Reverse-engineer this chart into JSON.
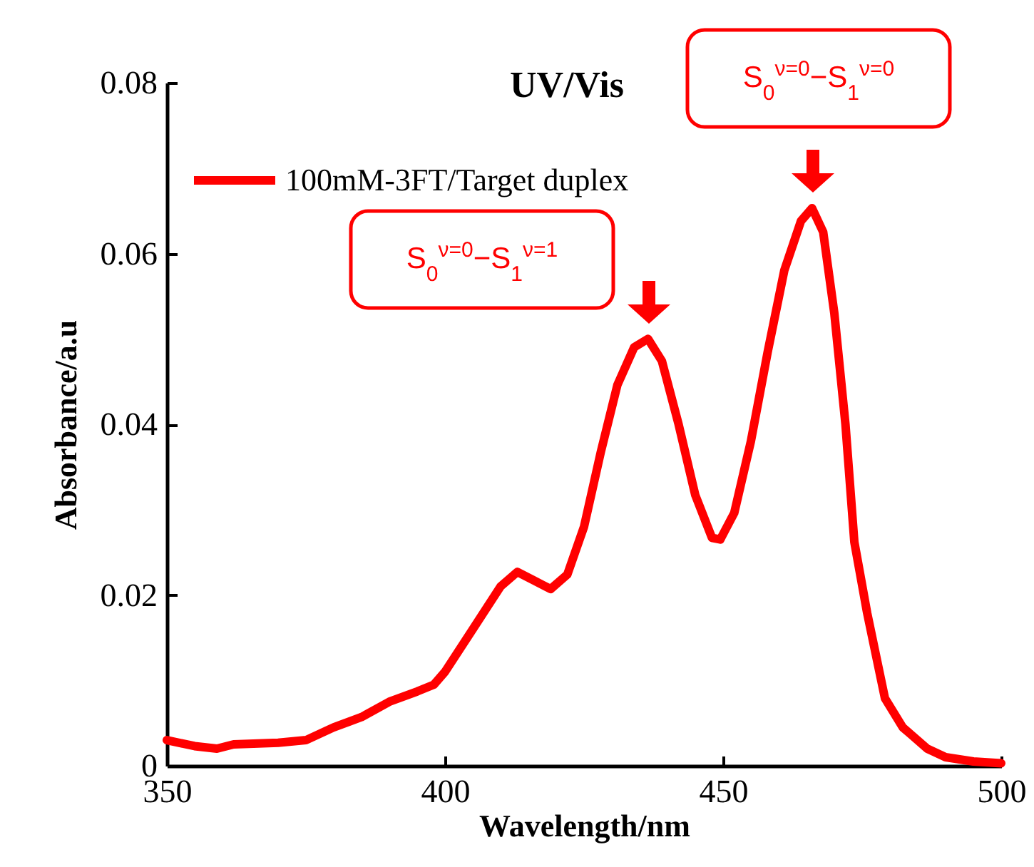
{
  "chart_data": {
    "type": "line",
    "title": "UV/Vis",
    "xlabel": "Wavelength/nm",
    "ylabel": "Absorbance/a.u",
    "x": [
      350,
      355,
      359,
      362,
      370,
      375,
      380,
      385,
      390,
      395,
      398,
      400,
      405,
      410,
      413,
      416,
      419,
      422,
      425,
      428,
      431,
      434,
      436.5,
      439,
      442,
      445,
      448,
      449.5,
      452,
      455,
      458,
      461,
      464,
      466,
      468,
      470,
      472,
      473.6,
      475.9,
      479.1,
      482.3,
      486.7,
      490,
      495,
      500
    ],
    "series": [
      {
        "name": "100mM-3FT/Target duplex",
        "color": "#ff0000",
        "values": [
          0.003,
          0.0023,
          0.002,
          0.0025,
          0.0027,
          0.003,
          0.0045,
          0.0057,
          0.0075,
          0.0087,
          0.0095,
          0.011,
          0.016,
          0.021,
          0.0227,
          0.0217,
          0.0207,
          0.0224,
          0.028,
          0.0367,
          0.0446,
          0.049,
          0.05,
          0.0474,
          0.04,
          0.0317,
          0.0267,
          0.0265,
          0.0296,
          0.038,
          0.0484,
          0.058,
          0.0638,
          0.0653,
          0.0625,
          0.053,
          0.04,
          0.0262,
          0.0179,
          0.0079,
          0.0045,
          0.002,
          0.001,
          0.0005,
          0.0003
        ]
      }
    ],
    "annotations": [
      "S$_{0}$$^{ν=0}$−S$_{1}$$^{ν=1}$",
      "S$_{0}$$^{ν=0}$−S$_{1}$$^{ν=0}$"
    ],
    "xlim": [
      350,
      500
    ],
    "xticks": [
      350,
      400,
      450,
      500
    ],
    "ylim": [
      0,
      0.08
    ],
    "yticks": [
      0,
      0.02,
      0.04,
      0.06,
      0.08
    ],
    "grid": false,
    "legend": "top left",
    "marker": "none",
    "line_style": "solid"
  }
}
